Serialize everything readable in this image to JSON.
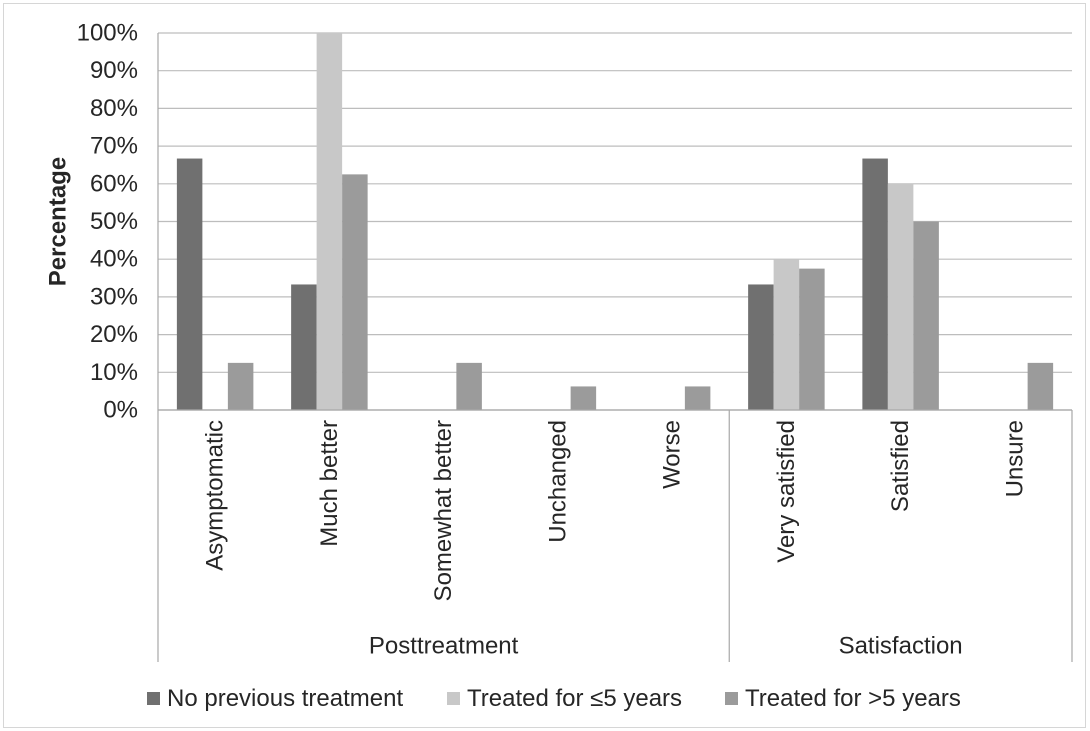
{
  "chart_data": {
    "type": "bar",
    "ylabel": "Percentage",
    "ylim": [
      0,
      100
    ],
    "yticks": [
      0,
      10,
      20,
      30,
      40,
      50,
      60,
      70,
      80,
      90,
      100
    ],
    "ytick_labels": [
      "0%",
      "10%",
      "20%",
      "30%",
      "40%",
      "50%",
      "60%",
      "70%",
      "80%",
      "90%",
      "100%"
    ],
    "grid": true,
    "legend": "bottom",
    "categories": [
      "Asymptomatic",
      "Much better",
      "Somewhat better",
      "Unchanged",
      "Worse",
      "Very satisfied",
      "Satisfied",
      "Unsure"
    ],
    "category_groups": [
      {
        "label": "Posttreatment",
        "category_indices": [
          0,
          1,
          2,
          3,
          4
        ]
      },
      {
        "label": "Satisfaction",
        "category_indices": [
          5,
          6,
          7
        ]
      }
    ],
    "series": [
      {
        "name": "No previous treatment",
        "color": "#707070",
        "values": [
          66.7,
          33.3,
          0,
          0,
          0,
          33.3,
          66.7,
          0
        ]
      },
      {
        "name": "Treated for ≤5 years",
        "color": "#c8c8c8",
        "values": [
          0,
          100,
          0,
          0,
          0,
          40,
          60,
          0
        ]
      },
      {
        "name": "Treated for >5 years",
        "color": "#9b9b9b",
        "values": [
          12.5,
          62.5,
          12.5,
          6.25,
          6.25,
          37.5,
          50,
          12.5
        ]
      }
    ]
  }
}
